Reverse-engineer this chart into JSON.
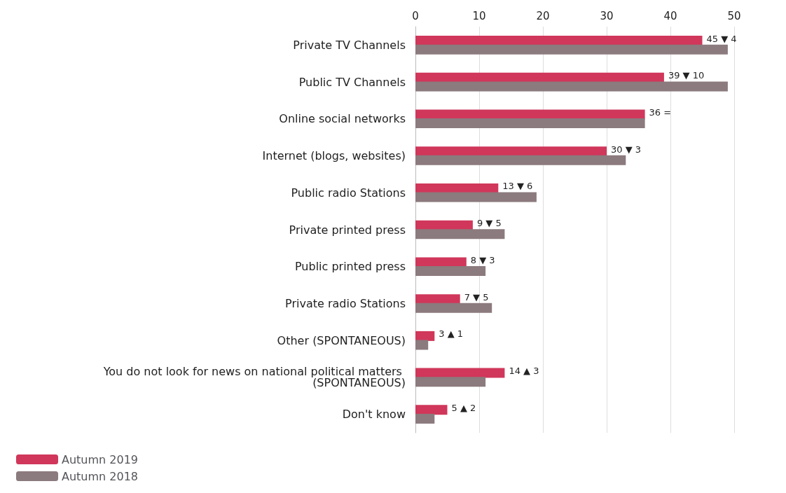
{
  "chart_data": {
    "type": "bar",
    "orientation": "horizontal",
    "categories": [
      "Private TV Channels",
      "Public TV Channels",
      "Online social networks",
      "Internet (blogs, websites)",
      "Public radio Stations",
      "Private printed press",
      "Public printed press",
      "Private radio Stations",
      "Other (SPONTANEOUS)",
      "You do not look for news on national political matters (SPONTANEOUS)",
      "Don't know"
    ],
    "series": [
      {
        "name": "Autumn 2019",
        "color": "#d0375a",
        "values": [
          45,
          39,
          36,
          30,
          13,
          9,
          8,
          7,
          3,
          14,
          5
        ],
        "value_labels": [
          "45 ▼ 4",
          "39 ▼ 10",
          "36 =",
          "30 ▼ 3",
          "13 ▼ 6",
          "9 ▼ 5",
          "8 ▼ 3",
          "7 ▼ 5",
          "3 ▲ 1",
          "14 ▲ 3",
          "5 ▲ 2"
        ]
      },
      {
        "name": "Autumn 2018",
        "color": "#8b7a7e",
        "values": [
          49,
          49,
          36,
          33,
          19,
          14,
          11,
          12,
          2,
          11,
          3
        ]
      }
    ],
    "xlim": [
      0,
      50
    ],
    "xticks": [
      0,
      10,
      20,
      30,
      40,
      50
    ],
    "grid": "x",
    "legend": "bottom left"
  }
}
